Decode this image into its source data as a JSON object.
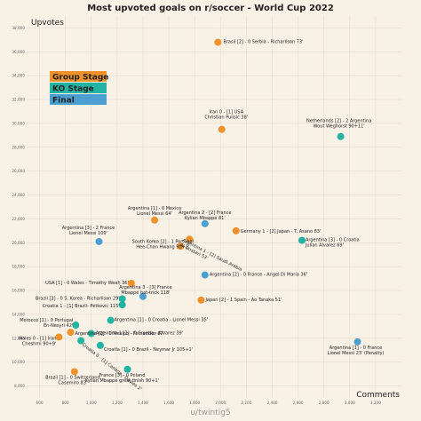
{
  "chart_data": {
    "type": "scatter",
    "title": "Most upvoted goals on r/soccer - World Cup 2022",
    "ylabel": "Upvotes",
    "xlabel": "Comments",
    "credit": "u/twintig5",
    "xlim": [
      500,
      3400
    ],
    "ylim": [
      7000,
      39000
    ],
    "xticks": [
      600,
      800,
      1000,
      1200,
      1400,
      1600,
      1800,
      2000,
      2200,
      2400,
      2600,
      2800,
      3000,
      3200
    ],
    "yticks": [
      8000,
      10000,
      12000,
      14000,
      16000,
      18000,
      20000,
      22000,
      24000,
      26000,
      28000,
      30000,
      32000,
      34000,
      36000,
      38000
    ],
    "grid": true,
    "legend": {
      "placement": "top-left",
      "entries": [
        {
          "name": "Group Stage",
          "color": "#f0922b"
        },
        {
          "name": "KO Stage",
          "color": "#22b3a3"
        },
        {
          "name": "Final",
          "color": "#4a9fd0"
        }
      ]
    },
    "colors": {
      "Group Stage": "#f0922b",
      "KO Stage": "#22b3a3",
      "Final": "#4a9fd0"
    },
    "points": [
      {
        "x": 1980,
        "y": 36800,
        "stage": "Group Stage",
        "label": [
          "Brasil [2] - 0 Serbia - Richarlison 73'"
        ]
      },
      {
        "x": 2010,
        "y": 29500,
        "stage": "Group Stage",
        "label": [
          "Iran 0 - [1] USA",
          "Christian Pulisic 38'"
        ]
      },
      {
        "x": 2930,
        "y": 28900,
        "stage": "KO Stage",
        "label": [
          "Netherlands [2] - 2 Argentina",
          "Wout Weghorst 90+11'"
        ]
      },
      {
        "x": 1490,
        "y": 21900,
        "stage": "Group Stage",
        "label": [
          "Argentina [1] - 0 Mexico",
          "Lionel Messi 64'"
        ]
      },
      {
        "x": 1880,
        "y": 21600,
        "stage": "Final",
        "label": [
          "Argentina 2 - [2] France",
          "Kylian Mbappé 81'"
        ]
      },
      {
        "x": 2120,
        "y": 21000,
        "stage": "Group Stage",
        "label": [
          "Germany 1 - [2] Japan - T. Asano 83'"
        ]
      },
      {
        "x": 1060,
        "y": 20100,
        "stage": "Final",
        "label": [
          "Argentina [3] - 2 France",
          "Lionel Messi 109'"
        ]
      },
      {
        "x": 1760,
        "y": 20300,
        "stage": "Group Stage",
        "label": [
          "South Korea [2] - 1 Portugal",
          "Hee-Chan Hwang 90+1'"
        ]
      },
      {
        "x": 1690,
        "y": 19700,
        "stage": "Group Stage",
        "label": [
          "Argentina 1 - [2] Saudi Arabia",
          "Al-Dossari 53'"
        ]
      },
      {
        "x": 2630,
        "y": 20200,
        "stage": "KO Stage",
        "label": [
          "Argentina [3] - 0 Croatia",
          "Julian Alvarez 69'"
        ]
      },
      {
        "x": 1880,
        "y": 17300,
        "stage": "Final",
        "label": [
          "Argentina [2] - 0 France - Angel Di Maria 36'"
        ]
      },
      {
        "x": 1310,
        "y": 16600,
        "stage": "Group Stage",
        "label": [
          "USA [1] - 0 Wales - Timothy Weah 36'"
        ]
      },
      {
        "x": 1400,
        "y": 15500,
        "stage": "Final",
        "label": [
          "Argentina 3 - [3] France",
          "Mbappé hat-trick 118'"
        ]
      },
      {
        "x": 1850,
        "y": 15200,
        "stage": "Group Stage",
        "label": [
          "Japan [2] - 1 Spain - Ao Tanaka 51'"
        ]
      },
      {
        "x": 1240,
        "y": 15300,
        "stage": "KO Stage",
        "label": [
          "Brazil [3] - 0 S. Korea - Richarlison 29'"
        ]
      },
      {
        "x": 1240,
        "y": 14800,
        "stage": "KO Stage",
        "label": [
          "Croatia 1 - [1] Brazil- Petkovic 115'"
        ]
      },
      {
        "x": 1150,
        "y": 13500,
        "stage": "KO Stage",
        "label": [
          "Argentina [1] - 0 Croatia - Lionel Messi 35'"
        ]
      },
      {
        "x": 880,
        "y": 13100,
        "stage": "KO Stage",
        "label": [
          "Morocco [1] - 0 Portugal",
          "En-Nesyri 42'"
        ]
      },
      {
        "x": 840,
        "y": 12500,
        "stage": "Group Stage",
        "label": [
          "Argentina [2] - 0 Mexico - Fernandez 87'"
        ]
      },
      {
        "x": 1000,
        "y": 12400,
        "stage": "KO Stage",
        "label": [
          "Argentina 1 [2] - 0 Croatia - Alvarez 39'"
        ]
      },
      {
        "x": 750,
        "y": 12100,
        "stage": "Group Stage",
        "label": [
          "Wales 0 - [1] Iran",
          "Cheshmi 90+9'"
        ]
      },
      {
        "x": 920,
        "y": 11800,
        "stage": "KO Stage",
        "label": [
          "Croatia 0 - [1] Canada - Davies 2'"
        ]
      },
      {
        "x": 1070,
        "y": 11400,
        "stage": "KO Stage",
        "label": [
          "Croatia [1] - 0 Brazil - Neymar Jr 105+1'"
        ]
      },
      {
        "x": 3060,
        "y": 11700,
        "stage": "Final",
        "label": [
          "Argentina [1] - 0 France",
          "Lionel Messi 23' (Penalty)"
        ]
      },
      {
        "x": 1280,
        "y": 9400,
        "stage": "KO Stage",
        "label": [
          "France [3] - 0 Poland",
          "Kylian Mbappé great finish 90+1'"
        ]
      },
      {
        "x": 870,
        "y": 9200,
        "stage": "Group Stage",
        "label": [
          "Brazil [1] - 0 Switzerland",
          "Casemiro 83'"
        ]
      }
    ]
  }
}
